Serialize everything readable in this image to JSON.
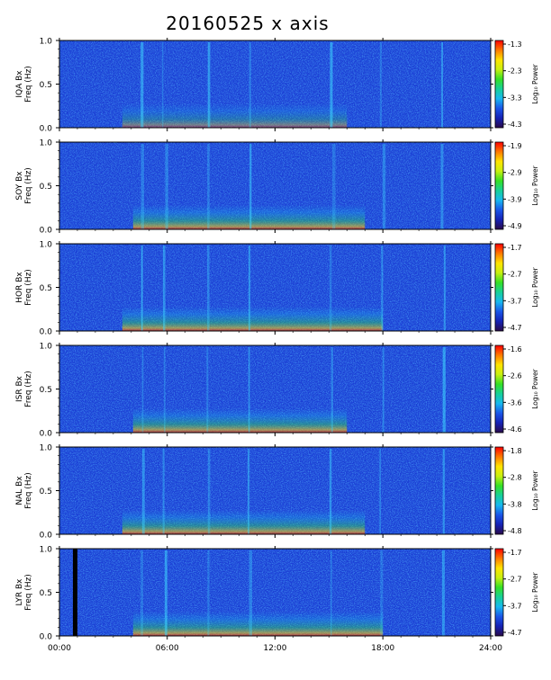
{
  "title": "20160525 x axis",
  "side_note": "",
  "colors": {
    "background": "#1a3fd6",
    "colormap": [
      "#2a0a4a",
      "#1522b5",
      "#1a55e8",
      "#17b8f0",
      "#16d09a",
      "#34e024",
      "#c8f010",
      "#ffe400",
      "#ff7a00",
      "#ff0000"
    ]
  },
  "chart_data": {
    "type": "heatmap",
    "title": "20160525 x axis",
    "x_ticks": [
      "00:00",
      "06:00",
      "12:00",
      "18:00",
      "24:00"
    ],
    "x_range_hours": [
      0,
      24
    ],
    "y_range_hz": [
      0.0,
      1.0
    ],
    "y_ticks": [
      "0.0",
      "0.5",
      "1.0"
    ],
    "colorbar_label": "Log₁₀ Power",
    "panels": [
      {
        "station": "IQA",
        "ylabel": "IQA Bx",
        "ylabel2": "Freq (Hz)",
        "cbar_ticks": [
          "-1.3",
          "-2.3",
          "-3.3",
          "-4.3"
        ]
      },
      {
        "station": "SOY",
        "ylabel": "SOY Bx",
        "ylabel2": "Freq (Hz)",
        "cbar_ticks": [
          "-1.9",
          "-2.9",
          "-3.9",
          "-4.9"
        ]
      },
      {
        "station": "HOR",
        "ylabel": "HOR Bx",
        "ylabel2": "Freq (Hz)",
        "cbar_ticks": [
          "-1.7",
          "-2.7",
          "-3.7",
          "-4.7"
        ]
      },
      {
        "station": "ISR",
        "ylabel": "ISR Bx",
        "ylabel2": "Freq (Hz)",
        "cbar_ticks": [
          "-1.6",
          "-2.6",
          "-3.6",
          "-4.6"
        ]
      },
      {
        "station": "NAL",
        "ylabel": "NAL Bx",
        "ylabel2": "Freq (Hz)",
        "cbar_ticks": [
          "-1.8",
          "-2.8",
          "-3.8",
          "-4.8"
        ]
      },
      {
        "station": "LYR",
        "ylabel": "LYR Bx",
        "ylabel2": "Freq (Hz)",
        "cbar_ticks": [
          "-1.7",
          "-2.7",
          "-3.7",
          "-4.7"
        ]
      }
    ]
  }
}
